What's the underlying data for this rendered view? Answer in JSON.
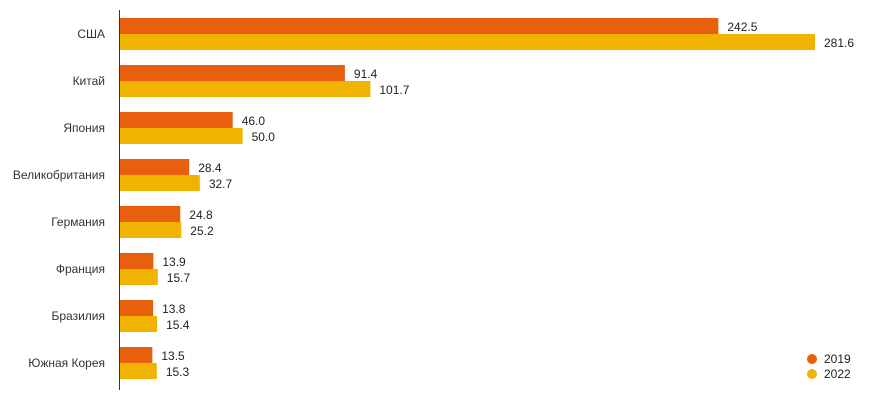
{
  "chart_data": {
    "type": "bar",
    "orientation": "horizontal",
    "categories": [
      "США",
      "Китай",
      "Япония",
      "Великобритания",
      "Германия",
      "Франция",
      "Бразилия",
      "Южная Корея"
    ],
    "series": [
      {
        "name": "2019",
        "color": "#E8600E",
        "values": [
          242.5,
          91.4,
          46.0,
          28.4,
          24.8,
          13.9,
          13.8,
          13.5
        ]
      },
      {
        "name": "2022",
        "color": "#F0B400",
        "values": [
          281.6,
          101.7,
          50.0,
          32.7,
          25.2,
          15.7,
          15.4,
          15.3
        ]
      }
    ],
    "xlim": [
      0,
      281.6
    ],
    "grid": false,
    "legend_position": "bottom-right"
  }
}
